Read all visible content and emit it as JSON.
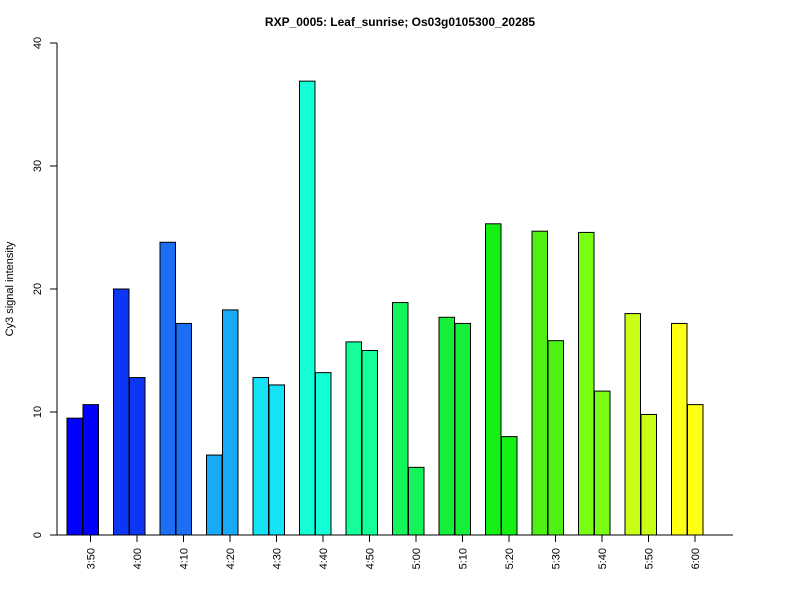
{
  "chart_data": {
    "type": "bar",
    "title": "RXP_0005: Leaf_sunrise; Os03g0105300_20285",
    "xlabel": "",
    "ylabel": "Cy3 signal intensity",
    "ylim": [
      0,
      40
    ],
    "yticks": [
      0,
      10,
      20,
      30,
      40
    ],
    "grid": false,
    "legend": "none",
    "categories": [
      "3:50",
      "4:00",
      "4:10",
      "4:20",
      "4:30",
      "4:40",
      "4:50",
      "5:00",
      "5:10",
      "5:20",
      "5:30",
      "5:40",
      "5:50",
      "6:00"
    ],
    "colors": [
      "#0000ff",
      "#0b36f2",
      "#1a6ff5",
      "#18aaf7",
      "#14e2f5",
      "#14ffd8",
      "#14ff9a",
      "#14f55a",
      "#14f03a",
      "#14f014",
      "#4ff014",
      "#7aff14",
      "#c8ff14",
      "#ffff14"
    ],
    "series": [
      {
        "values": [
          9.5,
          20.0,
          23.8,
          6.5,
          12.8,
          36.9,
          15.7,
          18.9,
          17.7,
          25.3,
          24.7,
          24.6,
          18.0,
          17.2
        ]
      },
      {
        "values": [
          10.6,
          12.8,
          17.2,
          18.3,
          12.2,
          13.2,
          15.0,
          5.5,
          17.2,
          8.0,
          15.8,
          11.7,
          9.8,
          10.6
        ]
      }
    ]
  }
}
